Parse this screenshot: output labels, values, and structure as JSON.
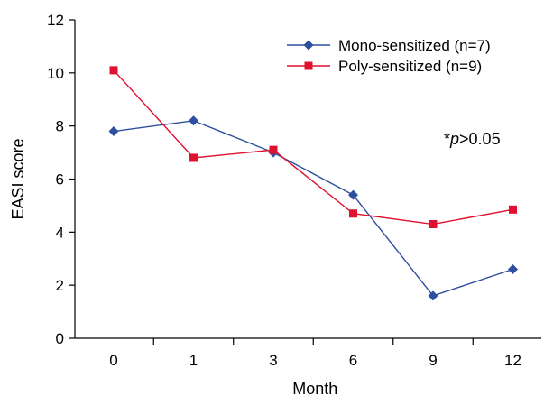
{
  "chart_data": {
    "type": "line",
    "title": "",
    "xlabel": "Month",
    "ylabel": "EASI score",
    "categories": [
      "0",
      "1",
      "3",
      "6",
      "9",
      "12"
    ],
    "ylim": [
      0,
      12
    ],
    "yticks": [
      "0",
      "2",
      "4",
      "6",
      "8",
      "10",
      "12"
    ],
    "grid": false,
    "legend_position": "top-right",
    "series": [
      {
        "name": "Mono-sensitized (n=7)",
        "values": [
          7.8,
          8.2,
          7.0,
          5.4,
          1.6,
          2.6
        ],
        "color": "#2e4f9e",
        "marker": "diamond"
      },
      {
        "name": "Poly-sensitized (n=9)",
        "values": [
          10.1,
          6.8,
          7.1,
          4.7,
          4.3,
          4.85
        ],
        "color": "#e0102e",
        "marker": "square"
      }
    ],
    "annotation": {
      "prefix": "*",
      "italic": "p",
      "suffix": ">0.05"
    }
  }
}
